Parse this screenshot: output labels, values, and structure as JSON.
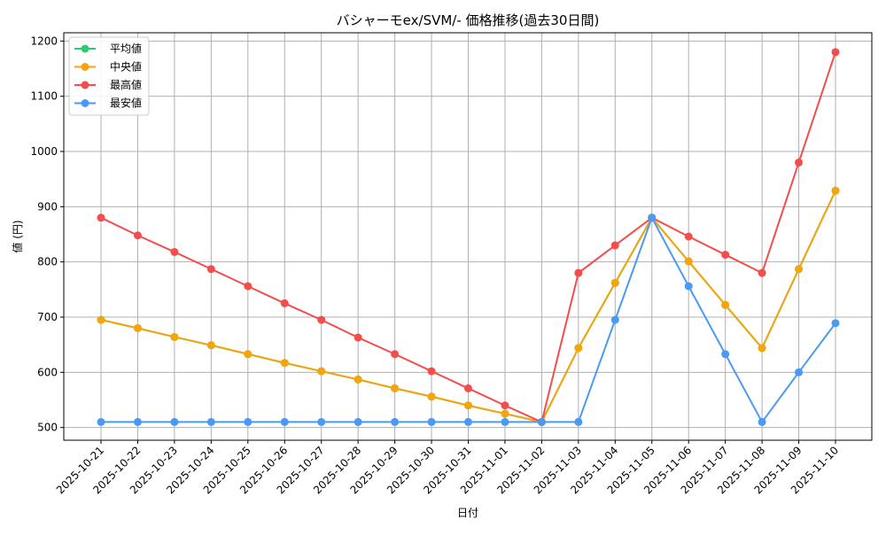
{
  "chart_data": {
    "type": "line",
    "title": "バシャーモex/SVM/- 価格推移(過去30日間)",
    "xlabel": "日付",
    "ylabel": "値 (円)",
    "ylim": [
      477,
      1215
    ],
    "yticks": [
      500,
      600,
      700,
      800,
      900,
      1000,
      1100,
      1200
    ],
    "grid": true,
    "legend_position": "upper left",
    "categories": [
      "2025-10-21",
      "2025-10-22",
      "2025-10-23",
      "2025-10-24",
      "2025-10-25",
      "2025-10-26",
      "2025-10-27",
      "2025-10-28",
      "2025-10-29",
      "2025-10-30",
      "2025-10-31",
      "2025-11-01",
      "2025-11-02",
      "2025-11-03",
      "2025-11-04",
      "2025-11-05",
      "2025-11-06",
      "2025-11-07",
      "2025-11-08",
      "2025-11-09",
      "2025-11-10"
    ],
    "series": [
      {
        "name": "平均値",
        "color": "#2ecc71",
        "values": [
          695,
          680,
          664,
          649,
          633,
          617,
          602,
          587,
          571,
          556,
          540,
          525,
          510,
          644,
          762,
          880,
          801,
          722,
          644,
          787,
          929
        ]
      },
      {
        "name": "中央値",
        "color": "#f5a40b",
        "values": [
          695,
          680,
          664,
          649,
          633,
          617,
          602,
          587,
          571,
          556,
          540,
          525,
          510,
          644,
          762,
          880,
          801,
          722,
          644,
          787,
          929
        ]
      },
      {
        "name": "最高値",
        "color": "#f54c4c",
        "values": [
          880,
          848,
          818,
          787,
          756,
          725,
          695,
          663,
          633,
          602,
          571,
          540,
          510,
          780,
          830,
          880,
          846,
          813,
          780,
          980,
          1180
        ]
      },
      {
        "name": "最安値",
        "color": "#4a9af5",
        "values": [
          510,
          510,
          510,
          510,
          510,
          510,
          510,
          510,
          510,
          510,
          510,
          510,
          510,
          510,
          695,
          880,
          756,
          633,
          510,
          600,
          689
        ]
      }
    ]
  }
}
